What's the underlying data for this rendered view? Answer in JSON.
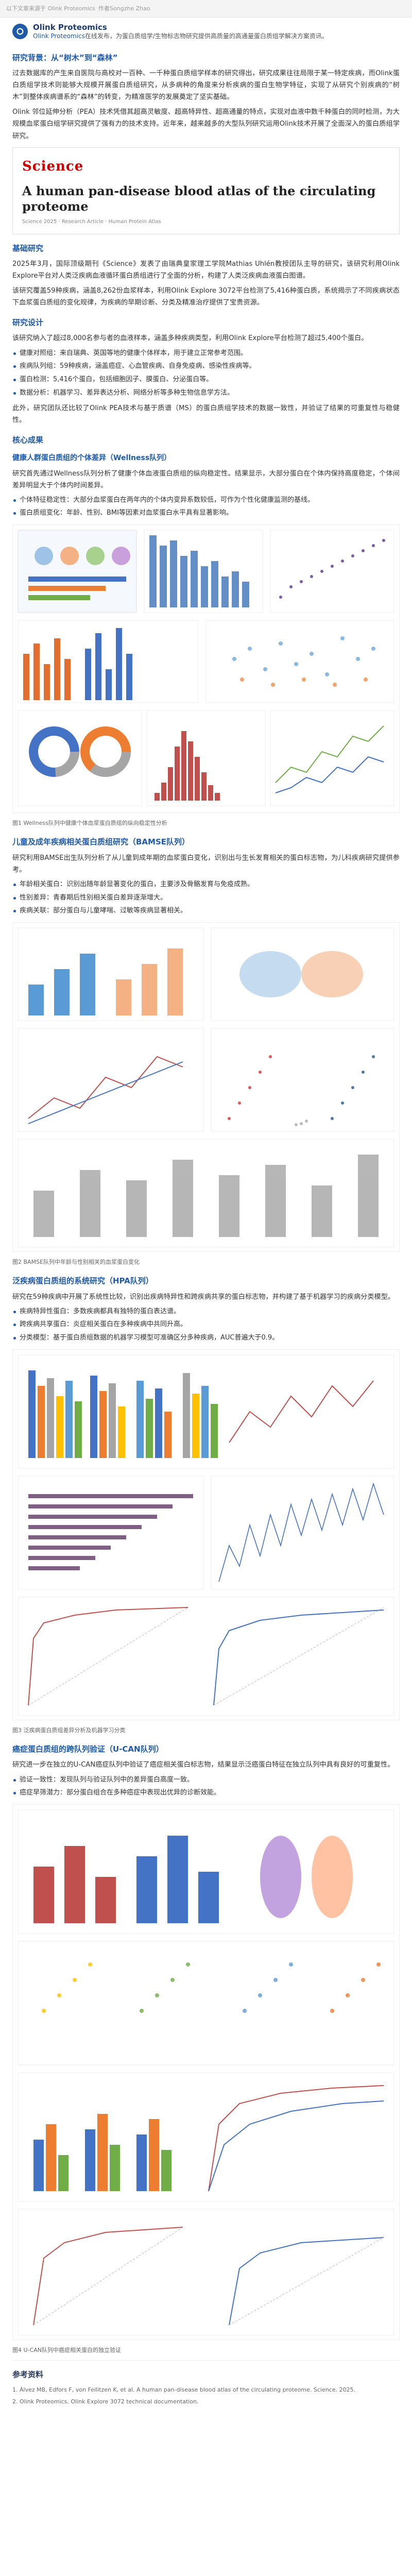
{
  "topbar": {
    "items": [
      "以下文章来源于 Olink Proteomics",
      "作者Songzhe Zhao"
    ]
  },
  "header": {
    "brand": "Olink Proteomics",
    "subtitle_prefix": "Olink Proteomics",
    "subtitle": "在线发布，为蛋白质组学/生物标志物研究提供高质量的高通量蛋白质组学解决方案资讯。"
  },
  "sec1": {
    "title": "研究背景：从“树木”到“森林”",
    "p1": "过去数据库的产生来自医院与高校对一百种、一千种蛋白质组学样本的研究得出，研究成果往往局限于某一特定疾病，而Olink蛋白质组学技术则能够大规模开展蛋白质组研究，从多病种的角度来分析疾病的蛋白生物学特征，实现了从研究个别疾病的“树木”到整体疾病谱系的“森林”的转变，为精准医学的发展奠定了坚实基础。",
    "p2": "Olink 邻位延伸分析（PEA）技术凭借其超高灵敏度、超高特异性、超高通量的特点，实现对血液中数千种蛋白的同时检测，为大规模血浆蛋白组学研究提供了强有力的技术支持。近年来，越来越多的大型队列研究运用Olink技术开展了全面深入的蛋白质组学研究。"
  },
  "paper": {
    "journal": "Science",
    "title": "A human pan-disease blood atlas of the circulating proteome",
    "meta": "Science 2025 · Research Article · Human Protein Atlas"
  },
  "sec2": {
    "title": "基础研究",
    "p1": "2025年3月，国际顶级期刊《Science》发表了由瑞典皇家理工学院Mathias Uhlén教授团队主导的研究，该研究利用Olink Explore平台对人类泛疾病血液循环蛋白质组进行了全面的分析，构建了人类泛疾病血液蛋白图谱。",
    "p2": "该研究覆盖59种疾病，涵盖8,262份血浆样本，利用Olink Explore 3072平台检测了5,416种蛋白质，系统揭示了不同疾病状态下血浆蛋白质组的变化规律，为疾病的早期诊断、分类及精准治疗提供了宝贵资源。"
  },
  "sec3": {
    "title": "研究设计",
    "p1": "该研究纳入了超过8,000名参与者的血液样本，涵盖多种疾病类型，利用Olink Explore平台检测了超过5,400个蛋白。",
    "bullets": [
      "健康对照组：来自瑞典、英国等地的健康个体样本，用于建立正常参考范围。",
      "疾病队列组：59种疾病，涵盖癌症、心血管疾病、自身免疫病、感染性疾病等。",
      "蛋白检测：5,416个蛋白，包括细胞因子、膜蛋白、分泌蛋白等。",
      "数据分析：机器学习、差异表达分析、网络分析等多种生物信息学方法。"
    ],
    "p2": "此外，研究团队还比较了Olink PEA技术与基于质谱（MS）的蛋白质组学技术的数据一致性，并验证了结果的可重复性与稳健性。"
  },
  "sec4": {
    "title": "核心成果",
    "sub1": "健康人群蛋白质组的个体差异（Wellness队列）",
    "p1": "研究首先通过Wellness队列分析了健康个体血液蛋白质组的纵向稳定性。结果显示，大部分蛋白在个体内保持高度稳定，个体间差异明显大于个体内时间差异。",
    "b1": [
      "个体特征稳定性：大部分血浆蛋白在两年内的个体内变异系数较低，可作为个性化健康监测的基线。",
      "蛋白质组变化：年龄、性别、BMI等因素对血浆蛋白水平具有显著影响。"
    ],
    "fig1_caption": "图1 Wellness队列中健康个体血浆蛋白质组的纵向稳定性分析"
  },
  "sec5": {
    "title": "儿童及成年疾病相关蛋白质组研究（BAMSE队列）",
    "p1": "研究利用BAMSE出生队列分析了从儿童到成年期的血浆蛋白变化，识别出与生长发育相关的蛋白标志物，为儿科疾病研究提供参考。",
    "b1": [
      "年龄相关蛋白：识别出随年龄显著变化的蛋白，主要涉及骨骼发育与免疫成熟。",
      "性别差异：青春期后性别相关蛋白差异逐渐增大。",
      "疾病关联：部分蛋白与儿童哮喘、过敏等疾病显著相关。"
    ],
    "fig2_caption": "图2 BAMSE队列中年龄与性别相关的血浆蛋白变化"
  },
  "sec6": {
    "title": "泛疾病蛋白质组的系统研究（HPA队列）",
    "p1": "研究在59种疾病中开展了系统性比较，识别出疾病特异性和跨疾病共享的蛋白标志物，并构建了基于机器学习的疾病分类模型。",
    "b1": [
      "疾病特异性蛋白：多数疾病都具有独特的蛋白表达谱。",
      "跨疾病共享蛋白：炎症相关蛋白在多种疾病中共同升高。",
      "分类模型：基于蛋白质组数据的机器学习模型可准确区分多种疾病，AUC普遍大于0.9。"
    ],
    "fig3_caption": "图3 泛疾病蛋白质组差异分析及机器学习分类"
  },
  "sec7": {
    "title": "癌症蛋白质组的跨队列验证（U-CAN队列）",
    "p1": "研究进一步在独立的U-CAN癌症队列中验证了癌症相关蛋白标志物，结果显示泛癌蛋白特征在独立队列中具有良好的可重复性。",
    "b1": [
      "验证一致性：发现队列与验证队列中的差异蛋白高度一致。",
      "癌症早筛潜力：部分蛋白组合在多种癌症中表现出优异的诊断效能。"
    ],
    "fig4_caption": "图4 U-CAN队列中癌症相关蛋白的独立验证"
  },
  "refs": {
    "title": "参考资料",
    "items": [
      "1. Álvez MB, Edfors F, von Feilitzen K, et al. A human pan-disease blood atlas of the circulating proteome. Science. 2025.",
      "2. Olink Proteomics. Olink Explore 3072 technical documentation."
    ]
  }
}
